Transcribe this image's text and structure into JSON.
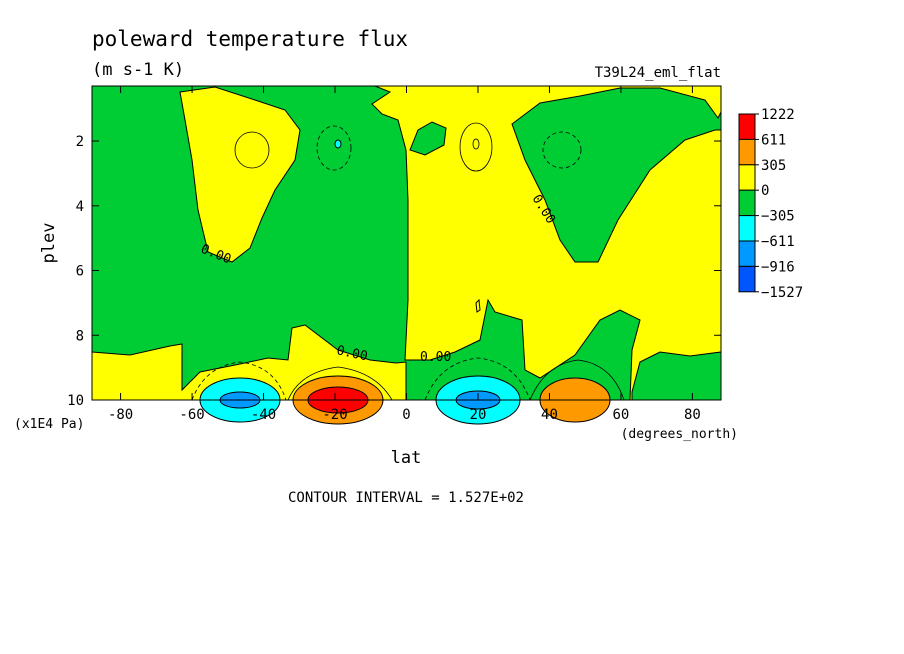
{
  "chart_data": {
    "type": "heatmap",
    "plot_kind": "filled contour",
    "title": "poleward temperature flux",
    "units": "(m s-1 K)",
    "run_label": "T39L24_eml_flat",
    "xlabel": "lat",
    "x_units": "(degrees_north)",
    "ylabel": "plev",
    "y_units": "(x1E4 Pa)",
    "xlim": [
      -88,
      88
    ],
    "ylim": [
      10,
      0.3
    ],
    "y_inverted": true,
    "x_ticks": [
      "-80",
      "-60",
      "-40",
      "-20",
      "0",
      "20",
      "40",
      "60",
      "80"
    ],
    "y_ticks": [
      "2",
      "4",
      "6",
      "8",
      "10"
    ],
    "contour_interval_text": "CONTOUR INTERVAL = 1.527E+02",
    "contour_labels": [
      "0.00",
      "0.00",
      "0.00",
      "0.00"
    ],
    "colorbar": {
      "levels": [
        "1222",
        "611",
        "305",
        "0",
        "-305",
        "-611",
        "-916",
        "-1527"
      ],
      "colors": [
        "#ff0000",
        "#ff9900",
        "#ffff00",
        "#00cc33",
        "#00ffff",
        "#0099ff",
        "#0055ff"
      ]
    },
    "features": [
      {
        "name": "positive maximum",
        "lat": -20,
        "plev": 10,
        "value": 1222,
        "color": "#ff0000"
      },
      {
        "name": "positive maximum",
        "lat": 45,
        "plev": 10,
        "value": 611,
        "color": "#ff9900"
      },
      {
        "name": "negative minimum",
        "lat": -50,
        "plev": 10,
        "value": -611,
        "color": "#0099ff"
      },
      {
        "name": "negative minimum",
        "lat": 20,
        "plev": 10,
        "value": -611,
        "color": "#0099ff"
      }
    ]
  }
}
